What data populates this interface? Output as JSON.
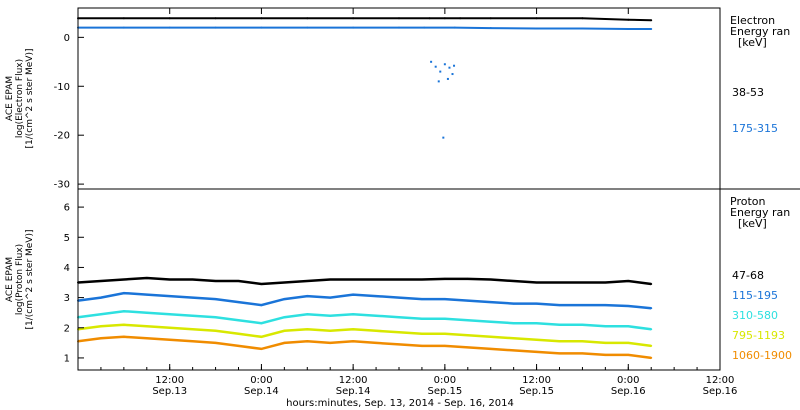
{
  "colors": {
    "black": "#000000",
    "blue": "#1a74d8",
    "cyan": "#2ee0e0",
    "yellow": "#d8e800",
    "orange": "#f08c00"
  },
  "x_axis": {
    "title": "hours:minutes, Sep. 13, 2014 - Sep. 16, 2014",
    "range_hours": [
      0,
      84
    ],
    "ticks": [
      {
        "hours": 12,
        "time": "12:00",
        "date": "Sep.13"
      },
      {
        "hours": 24,
        "time": "0:00",
        "date": "Sep.14"
      },
      {
        "hours": 36,
        "time": "12:00",
        "date": "Sep.14"
      },
      {
        "hours": 48,
        "time": "0:00",
        "date": "Sep.15"
      },
      {
        "hours": 60,
        "time": "12:00",
        "date": "Sep.15"
      },
      {
        "hours": 72,
        "time": "0:00",
        "date": "Sep.16"
      },
      {
        "hours": 84,
        "time": "12:00",
        "date": "Sep.16"
      }
    ]
  },
  "chart_data": [
    {
      "type": "scatter",
      "panel": "electron",
      "ylabel": [
        "ACE EPAM",
        "log(Electron Flux)",
        "[1/(cm^2 s ster MeV)]"
      ],
      "ylim": [
        -31,
        6
      ],
      "yticks": [
        0,
        -10,
        -20,
        -30
      ],
      "legend_title": [
        "Electron",
        "Energy ran",
        "[keV]"
      ],
      "series": [
        {
          "name": "38-53",
          "color_key": "black",
          "x": [
            0,
            6,
            12,
            18,
            24,
            30,
            36,
            42,
            46,
            48,
            50,
            54,
            60,
            66,
            72,
            75
          ],
          "y": [
            3.9,
            3.9,
            3.9,
            3.9,
            3.9,
            3.9,
            3.9,
            3.9,
            3.9,
            3.9,
            3.9,
            3.9,
            3.9,
            3.9,
            3.6,
            3.5
          ]
        },
        {
          "name": "175-315",
          "color_key": "blue",
          "x": [
            0,
            6,
            12,
            18,
            24,
            30,
            36,
            42,
            45.3,
            49.3,
            54,
            60,
            66,
            72,
            75
          ],
          "y": [
            2,
            2,
            2,
            2,
            2,
            2,
            2,
            2,
            2,
            2,
            1.9,
            1.8,
            1.8,
            1.7,
            1.7
          ]
        },
        {
          "name": "175-315 (gap)",
          "color_key": "blue",
          "x": [
            46.2,
            46.8,
            47.4,
            48,
            48.6,
            49,
            47.2,
            48.4,
            47.8,
            49.2
          ],
          "y": [
            -5,
            -6,
            -7,
            -5.5,
            -6.2,
            -7.5,
            -9,
            -8.5,
            -20.5,
            -5.8
          ]
        }
      ]
    },
    {
      "type": "line",
      "panel": "proton",
      "ylabel": [
        "ACE EPAM",
        "log(Proton Flux)",
        "[1/(cm^2 s ster MeV)]"
      ],
      "ylim": [
        0.6,
        6.6
      ],
      "yticks": [
        1,
        2,
        3,
        4,
        5,
        6
      ],
      "legend_title": [
        "Proton",
        "Energy ran",
        "[keV]"
      ],
      "series": [
        {
          "name": "47-68",
          "color_key": "black",
          "x": [
            0,
            3,
            6,
            9,
            12,
            15,
            18,
            21,
            24,
            27,
            30,
            33,
            36,
            39,
            42,
            45,
            48,
            51,
            54,
            57,
            60,
            63,
            66,
            69,
            72,
            75
          ],
          "y": [
            3.5,
            3.55,
            3.6,
            3.65,
            3.6,
            3.6,
            3.55,
            3.55,
            3.45,
            3.5,
            3.55,
            3.6,
            3.6,
            3.6,
            3.6,
            3.6,
            3.62,
            3.62,
            3.6,
            3.55,
            3.5,
            3.5,
            3.5,
            3.5,
            3.55,
            3.45
          ]
        },
        {
          "name": "115-195",
          "color_key": "blue",
          "x": [
            0,
            3,
            6,
            9,
            12,
            15,
            18,
            21,
            24,
            27,
            30,
            33,
            36,
            39,
            42,
            45,
            48,
            51,
            54,
            57,
            60,
            63,
            66,
            69,
            72,
            75
          ],
          "y": [
            2.9,
            3.0,
            3.15,
            3.1,
            3.05,
            3.0,
            2.95,
            2.85,
            2.75,
            2.95,
            3.05,
            3.0,
            3.1,
            3.05,
            3.0,
            2.95,
            2.95,
            2.9,
            2.85,
            2.8,
            2.8,
            2.75,
            2.75,
            2.75,
            2.72,
            2.65
          ]
        },
        {
          "name": "310-580",
          "color_key": "cyan",
          "x": [
            0,
            3,
            6,
            9,
            12,
            15,
            18,
            21,
            24,
            27,
            30,
            33,
            36,
            39,
            42,
            45,
            48,
            51,
            54,
            57,
            60,
            63,
            66,
            69,
            72,
            75
          ],
          "y": [
            2.35,
            2.45,
            2.55,
            2.5,
            2.45,
            2.4,
            2.35,
            2.25,
            2.15,
            2.35,
            2.45,
            2.4,
            2.45,
            2.4,
            2.35,
            2.3,
            2.3,
            2.25,
            2.2,
            2.15,
            2.15,
            2.1,
            2.1,
            2.05,
            2.05,
            1.95
          ]
        },
        {
          "name": "795-1193",
          "color_key": "yellow",
          "x": [
            0,
            3,
            6,
            9,
            12,
            15,
            18,
            21,
            24,
            27,
            30,
            33,
            36,
            39,
            42,
            45,
            48,
            51,
            54,
            57,
            60,
            63,
            66,
            69,
            72,
            75
          ],
          "y": [
            1.95,
            2.05,
            2.1,
            2.05,
            2.0,
            1.95,
            1.9,
            1.8,
            1.7,
            1.9,
            1.95,
            1.9,
            1.95,
            1.9,
            1.85,
            1.8,
            1.8,
            1.75,
            1.7,
            1.65,
            1.6,
            1.55,
            1.55,
            1.5,
            1.5,
            1.4
          ]
        },
        {
          "name": "1060-1900",
          "color_key": "orange",
          "x": [
            0,
            3,
            6,
            9,
            12,
            15,
            18,
            21,
            24,
            27,
            30,
            33,
            36,
            39,
            42,
            45,
            48,
            51,
            54,
            57,
            60,
            63,
            66,
            69,
            72,
            75
          ],
          "y": [
            1.55,
            1.65,
            1.7,
            1.65,
            1.6,
            1.55,
            1.5,
            1.4,
            1.3,
            1.5,
            1.55,
            1.5,
            1.55,
            1.5,
            1.45,
            1.4,
            1.4,
            1.35,
            1.3,
            1.25,
            1.2,
            1.15,
            1.15,
            1.1,
            1.1,
            1.0
          ]
        }
      ]
    }
  ]
}
